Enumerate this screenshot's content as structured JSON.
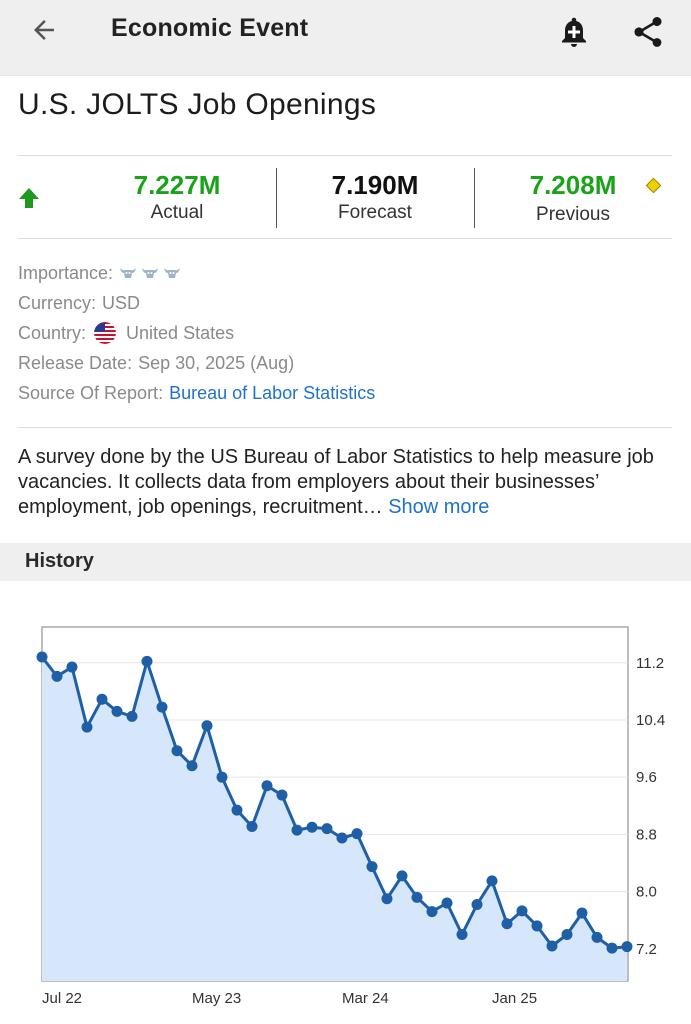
{
  "header": {
    "title": "Economic Event"
  },
  "event": {
    "title": "U.S. JOLTS Job Openings",
    "actual_value": "7.227M",
    "actual_label": "Actual",
    "forecast_value": "7.190M",
    "forecast_label": "Forecast",
    "previous_value": "7.208M",
    "previous_label": "Previous",
    "colors": {
      "positive": "#19a318",
      "neutral": "#111111",
      "link": "#1f72c8"
    }
  },
  "details": {
    "importance_label": "Importance:",
    "importance_level": 3,
    "currency_label": "Currency:",
    "currency_value": "USD",
    "country_label": "Country:",
    "country_value": "United States",
    "release_label": "Release Date:",
    "release_value": "Sep 30, 2025 (Aug)",
    "source_label": "Source Of Report:",
    "source_value": "Bureau of Labor Statistics"
  },
  "description": {
    "text": "A survey done by the US Bureau of Labor Statistics to help measure job vacancies. It collects data from employers about their businesses’ employment, job openings, recruitment…",
    "show_more": "Show more"
  },
  "history": {
    "label": "History"
  },
  "chart_data": {
    "type": "area",
    "title": "",
    "xlabel": "",
    "ylabel": "",
    "ylim": [
      6.75,
      11.7
    ],
    "y_ticks": [
      7.2,
      8.0,
      8.8,
      9.6,
      10.4,
      11.2
    ],
    "y_tick_labels": [
      "7.2",
      "8.0",
      "8.8",
      "9.6",
      "10.4",
      "11.2"
    ],
    "x_tick_labels": [
      "Jul 22",
      "May 23",
      "Mar 24",
      "Jan 25"
    ],
    "x_tick_index": [
      0,
      10,
      20,
      30
    ],
    "grid": true,
    "colors": {
      "line": "#1f5fa6",
      "fill": "#d6e6fb"
    },
    "series": [
      {
        "values": [
          11.28,
          11.01,
          11.14,
          10.3,
          10.69,
          10.52,
          10.45,
          11.22,
          10.58,
          9.97,
          9.76,
          10.32,
          9.6,
          9.14,
          8.91,
          9.48,
          9.35,
          8.86,
          8.9,
          8.88,
          8.75,
          8.81,
          8.35,
          7.9,
          8.22,
          7.92,
          7.72,
          7.84,
          7.4,
          7.82,
          8.15,
          7.55,
          7.73,
          7.52,
          7.24,
          7.4,
          7.7,
          7.36,
          7.21,
          7.23
        ]
      }
    ]
  }
}
